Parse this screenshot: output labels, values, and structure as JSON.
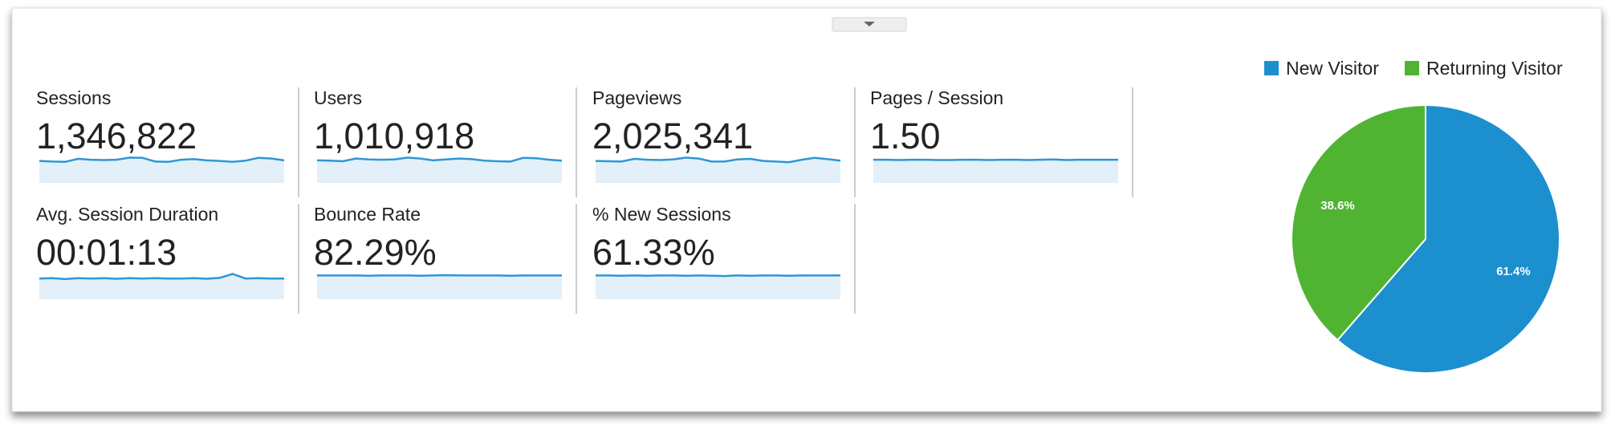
{
  "metrics": [
    {
      "label": "Sessions",
      "value": "1,346,822",
      "trend": {
        "ylim": [
          0,
          10
        ],
        "values": [
          7.2,
          7.0,
          6.9,
          7.9,
          7.6,
          7.5,
          7.6,
          8.3,
          8.2,
          7.0,
          6.9,
          7.6,
          7.8,
          7.4,
          7.2,
          6.9,
          7.3,
          8.2,
          8.0,
          7.4
        ]
      }
    },
    {
      "label": "Users",
      "value": "1,010,918",
      "trend": {
        "ylim": [
          0,
          10
        ],
        "values": [
          7.4,
          7.3,
          7.1,
          8.0,
          7.7,
          7.6,
          7.7,
          8.3,
          8.0,
          7.4,
          7.7,
          8.0,
          7.8,
          7.3,
          7.1,
          7.0,
          8.2,
          8.1,
          7.6,
          7.3
        ]
      }
    },
    {
      "label": "Pageviews",
      "value": "2,025,341",
      "trend": {
        "ylim": [
          0,
          10
        ],
        "values": [
          7.2,
          7.1,
          7.0,
          7.9,
          7.6,
          7.5,
          7.7,
          8.3,
          8.0,
          7.0,
          7.0,
          7.7,
          7.9,
          7.2,
          7.0,
          6.8,
          7.6,
          8.2,
          7.8,
          7.3
        ]
      }
    },
    {
      "label": "Pages / Session",
      "value": "1.50",
      "trend": {
        "ylim": [
          0,
          10
        ],
        "values": [
          7.6,
          7.6,
          7.5,
          7.6,
          7.6,
          7.5,
          7.5,
          7.6,
          7.6,
          7.5,
          7.6,
          7.6,
          7.5,
          7.6,
          7.7,
          7.5,
          7.6,
          7.6,
          7.6,
          7.6
        ]
      }
    },
    {
      "label": "Avg. Session Duration",
      "value": "00:01:13",
      "trend": {
        "ylim": [
          0,
          10
        ],
        "values": [
          6.8,
          6.9,
          6.6,
          6.9,
          6.8,
          6.9,
          6.7,
          6.9,
          6.8,
          6.9,
          6.8,
          6.8,
          6.9,
          6.7,
          7.0,
          8.3,
          6.8,
          6.9,
          6.8,
          6.8
        ]
      }
    },
    {
      "label": "Bounce Rate",
      "value": "82.29%",
      "trend": {
        "ylim": [
          0,
          10
        ],
        "values": [
          7.8,
          7.8,
          7.8,
          7.8,
          7.7,
          7.8,
          7.8,
          7.8,
          7.7,
          7.8,
          7.9,
          7.8,
          7.8,
          7.8,
          7.8,
          7.7,
          7.8,
          7.8,
          7.8,
          7.8
        ]
      }
    },
    {
      "label": "% New Sessions",
      "value": "61.33%",
      "trend": {
        "ylim": [
          0,
          10
        ],
        "values": [
          7.8,
          7.8,
          7.7,
          7.8,
          7.7,
          7.8,
          7.8,
          7.7,
          7.8,
          7.7,
          7.6,
          7.8,
          7.7,
          7.8,
          7.8,
          7.7,
          7.8,
          7.8,
          7.8,
          7.8
        ]
      }
    }
  ],
  "chart_data": {
    "type": "pie",
    "categories": [
      "New Visitor",
      "Returning Visitor"
    ],
    "values": [
      61.4,
      38.6
    ],
    "value_labels": [
      "61.4%",
      "38.6%"
    ],
    "colors": [
      "#1c8fcf",
      "#50b432"
    ]
  }
}
